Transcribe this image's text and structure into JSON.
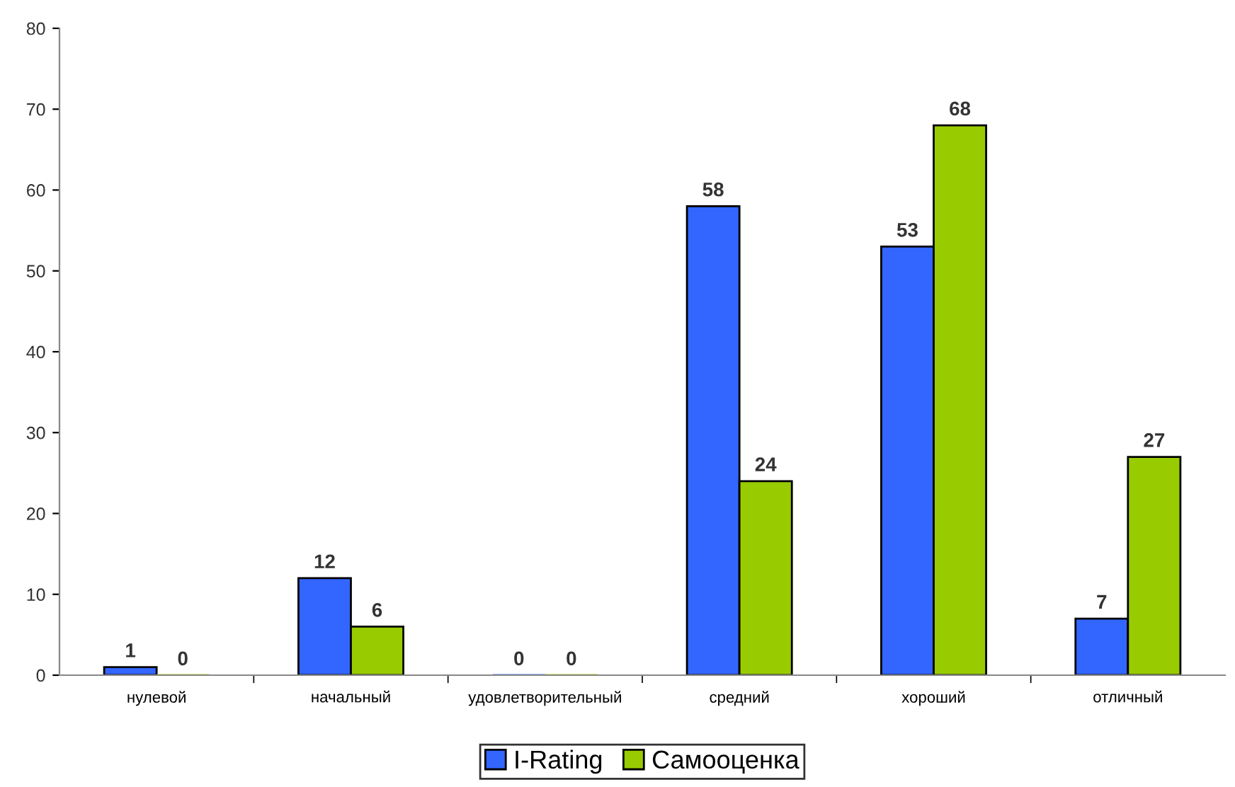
{
  "chart_data": {
    "type": "bar",
    "categories": [
      "нулевой",
      "начальный",
      "удовлетворительный",
      "средний",
      "хороший",
      "отличный"
    ],
    "series": [
      {
        "name": "I-Rating",
        "color": "#3366ff",
        "values": [
          1,
          12,
          0,
          58,
          53,
          7
        ]
      },
      {
        "name": "Самооценка",
        "color": "#99cc00",
        "values": [
          0,
          6,
          0,
          24,
          68,
          27
        ]
      }
    ],
    "ylim": [
      0,
      80
    ],
    "yticks": [
      0,
      10,
      20,
      30,
      40,
      50,
      60,
      70,
      80
    ],
    "grid": false,
    "legend": "bottom",
    "data_labels": true
  }
}
